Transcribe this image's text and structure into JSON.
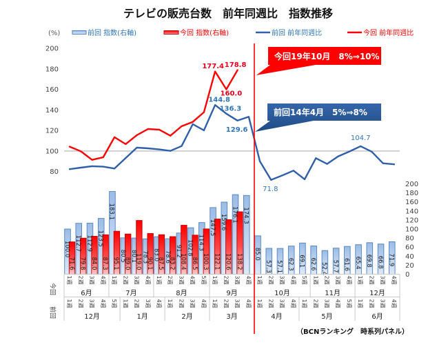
{
  "chart_data": {
    "type": "bar",
    "combo": "bar+line",
    "title": "テレビの販売台数　前年同週比　指数推移",
    "source_note": "（BCNランキング　時系列パネル）",
    "legend": [
      {
        "label": "前回 指数(右軸)",
        "series": "prev_index",
        "mark": "bar"
      },
      {
        "label": "今回 指数(右軸)",
        "series": "curr_index",
        "mark": "bar"
      },
      {
        "label": "前回 前年同週比",
        "series": "prev_yoy",
        "mark": "line"
      },
      {
        "label": "今回 前年同週比",
        "series": "curr_yoy",
        "mark": "line"
      }
    ],
    "legend_position": "top",
    "colors": {
      "prev_bar_top": "#9BBCE6",
      "prev_bar_bottom": "#DDE9F7",
      "prev_bar_stroke": "#4F81BD",
      "curr_bar_top": "#FF0000",
      "curr_bar_bottom": "#FFC8C8",
      "curr_bar_stroke": "#C00000",
      "prev_line": "#2E5FA8",
      "curr_line": "#FF0000",
      "prev_text": "#2E75B6",
      "curr_text": "#E8001C",
      "reference_line": "#C4C4C4",
      "event_line": "#FF0000",
      "grid_border": "#C8C8C8"
    },
    "y_left": {
      "label": "(%)",
      "min": -20,
      "max": 200,
      "tick_labels": [
        80,
        100,
        120,
        140,
        160,
        180,
        200
      ]
    },
    "y_right": {
      "label": "",
      "min": 0,
      "max": 500,
      "tick_labels": [
        0,
        20,
        40,
        60,
        80,
        100,
        120,
        140,
        160,
        180,
        200
      ]
    },
    "grid": false,
    "reference_value": 100,
    "event_boundary_after_category": 17,
    "x_axis": {
      "rows": [
        {
          "label": "今回",
          "months": [
            {
              "month": "6月",
              "weeks": [
                "1週",
                "2週",
                "3週",
                "4週"
              ]
            },
            {
              "month": "7月",
              "weeks": [
                "1週",
                "2週",
                "3週",
                "4週"
              ]
            },
            {
              "month": "8月",
              "weeks": [
                "1週",
                "2週",
                "3週",
                "4週",
                "5週"
              ]
            },
            {
              "month": "9月",
              "weeks": [
                "1週",
                "2週",
                "3週",
                "4週"
              ]
            },
            {
              "month": "10月",
              "weeks": [
                "1週",
                "2週",
                "3週",
                "4週",
                "5週"
              ]
            },
            {
              "month": "11月",
              "weeks": [
                "1週",
                "2週",
                "3週",
                "4週"
              ]
            },
            {
              "month": "12月",
              "weeks": [
                "1週",
                "2週",
                "3週",
                "4週"
              ]
            }
          ]
        },
        {
          "label": "前回",
          "months": [
            {
              "month": "12月",
              "weeks": [
                "1週",
                "2週",
                "3週",
                "4週",
                "5週"
              ]
            },
            {
              "month": "1月",
              "weeks": [
                "1週",
                "2週",
                "3週",
                "4週"
              ]
            },
            {
              "month": "2月",
              "weeks": [
                "1週",
                "2週",
                "3週",
                "4週"
              ]
            },
            {
              "month": "3月",
              "weeks": [
                "1週",
                "2週",
                "3週",
                "4週"
              ]
            },
            {
              "month": "4月",
              "weeks": [
                "1週",
                "2週",
                "3週",
                "4週"
              ]
            },
            {
              "month": "5月",
              "weeks": [
                "1週",
                "2週",
                "3週",
                "4週",
                "5週"
              ]
            },
            {
              "month": "6月",
              "weeks": [
                "1週",
                "2週",
                "3週",
                "4週"
              ]
            }
          ]
        }
      ]
    },
    "series": [
      {
        "id": "prev_index",
        "name": "前回 指数(右軸)",
        "mark": "bar",
        "axis": "right",
        "show_value_labels": true,
        "values": [
          100.0,
          112.7,
          112.9,
          123.5,
          183.1,
          80.5,
          80.1,
          78.3,
          83.0,
          78.6,
          91.2,
          102.8,
          114.3,
          147.5,
          159.6,
          176.1,
          174.3,
          85.0,
          57.3,
          57.1,
          62.3,
          69.1,
          62.6,
          52.4,
          57.7,
          61.6,
          65.4,
          69.8,
          66.8,
          71.9
        ]
      },
      {
        "id": "curr_index",
        "name": "今回 指数(右軸)",
        "mark": "bar",
        "axis": "right",
        "show_value_labels": true,
        "values": [
          71.6,
          79.8,
          84.0,
          87.3,
          95.1,
          89.0,
          119.0,
          90.1,
          87.5,
          83.2,
          108.4,
          86.5,
          100.3,
          122.1,
          120.6,
          138.2,
          null,
          null,
          null,
          null,
          null,
          null,
          null,
          null,
          null,
          null,
          null,
          null,
          null,
          null
        ]
      },
      {
        "id": "prev_yoy",
        "name": "前回 前年同週比",
        "mark": "line",
        "axis": "left",
        "values": [
          82.3,
          83.8,
          85.2,
          84.7,
          82.9,
          93.1,
          103.3,
          102.6,
          101.5,
          100.1,
          104.8,
          126.1,
          120.1,
          144.8,
          136.3,
          129.6,
          133.3,
          89.9,
          71.8,
          76.2,
          80.9,
          72.4,
          93.0,
          87.4,
          94.8,
          99.5,
          104.7,
          99.3,
          88.0,
          87.0
        ]
      },
      {
        "id": "curr_yoy",
        "name": "今回 前年同週比",
        "mark": "line",
        "axis": "left",
        "values": [
          104.2,
          99.7,
          91.4,
          93.9,
          113.4,
          106.7,
          115.4,
          121.4,
          120.8,
          114.9,
          124.1,
          128.3,
          137.8,
          177.4,
          160.0,
          178.8,
          null,
          null,
          null,
          null,
          null,
          null,
          null,
          null,
          null,
          null,
          null,
          null,
          null,
          null
        ]
      }
    ],
    "point_labels": [
      {
        "series": "curr_yoy",
        "index": 13,
        "text": "177.4",
        "position": "above-left",
        "emphasis": true
      },
      {
        "series": "curr_yoy",
        "index": 14,
        "text": "160.0",
        "position": "below-right",
        "emphasis": true
      },
      {
        "series": "curr_yoy",
        "index": 15,
        "text": "178.8",
        "position": "above-left",
        "emphasis": true
      },
      {
        "series": "prev_yoy",
        "index": 13,
        "text": "144.8",
        "position": "above-right",
        "emphasis": true
      },
      {
        "series": "prev_yoy",
        "index": 14,
        "text": "136.3",
        "position": "above-right",
        "emphasis": true
      },
      {
        "series": "prev_yoy",
        "index": 15,
        "text": "129.6",
        "position": "below",
        "emphasis": true
      },
      {
        "series": "prev_yoy",
        "index": 18,
        "text": "71.8",
        "position": "below",
        "emphasis": false
      },
      {
        "series": "prev_yoy",
        "index": 26,
        "text": "104.7",
        "position": "above",
        "emphasis": false
      }
    ],
    "annotations": [
      {
        "text": "今回19年10月　8%⇒10%",
        "style": "red-callout",
        "points_to": "event_line"
      },
      {
        "text": "前回14年4月　5%⇒8%",
        "style": "blue-callout",
        "points_to": "event_line"
      }
    ]
  }
}
